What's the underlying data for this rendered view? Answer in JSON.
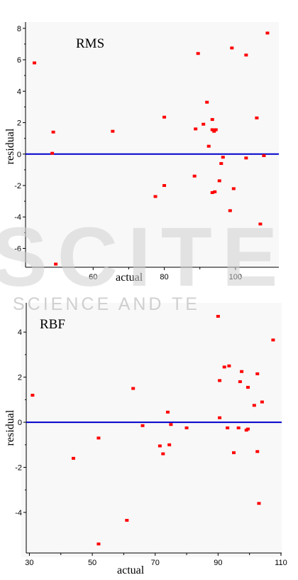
{
  "charts": [
    {
      "label": "RMS",
      "xlabel": "actual",
      "ylabel": "residual"
    },
    {
      "label": "RBF",
      "xlabel": "actual",
      "ylabel": "residual"
    }
  ],
  "watermark": {
    "big_text": "SCITE",
    "small_text": "SCIENCE AND TE"
  },
  "colors": {
    "point": "#ff0000",
    "zero_line": "#0000cc",
    "axis": "#000000",
    "watermark": "#c8c8c8"
  },
  "chart_data": [
    {
      "type": "scatter",
      "title": "RMS",
      "xlabel": "actual",
      "ylabel": "residual",
      "xlim": [
        41,
        112
      ],
      "ylim": [
        -7.2,
        8.4
      ],
      "xticks": [
        60,
        80,
        100
      ],
      "yticks": [
        -6,
        -4,
        -2,
        0,
        2,
        4,
        6,
        8
      ],
      "reference_line_y": 0,
      "grid": false,
      "points": [
        {
          "x": 43.5,
          "y": 5.8
        },
        {
          "x": 48.5,
          "y": 0.05
        },
        {
          "x": 48.8,
          "y": 1.4
        },
        {
          "x": 49.5,
          "y": -7.0
        },
        {
          "x": 65.5,
          "y": 1.45
        },
        {
          "x": 77.5,
          "y": -2.7
        },
        {
          "x": 80.0,
          "y": 2.35
        },
        {
          "x": 80.0,
          "y": -2.0
        },
        {
          "x": 88.5,
          "y": -1.4
        },
        {
          "x": 88.8,
          "y": 1.6
        },
        {
          "x": 89.5,
          "y": 6.4
        },
        {
          "x": 91.0,
          "y": 1.9
        },
        {
          "x": 92.0,
          "y": 3.3
        },
        {
          "x": 92.5,
          "y": 0.5
        },
        {
          "x": 93.5,
          "y": 2.2
        },
        {
          "x": 93.5,
          "y": 1.55
        },
        {
          "x": 93.5,
          "y": -2.45
        },
        {
          "x": 94.0,
          "y": 1.45
        },
        {
          "x": 94.2,
          "y": -2.4
        },
        {
          "x": 94.5,
          "y": 1.55
        },
        {
          "x": 95.5,
          "y": -1.7
        },
        {
          "x": 96.0,
          "y": -0.6
        },
        {
          "x": 96.5,
          "y": -0.2
        },
        {
          "x": 98.5,
          "y": -3.6
        },
        {
          "x": 99.0,
          "y": 6.75
        },
        {
          "x": 99.5,
          "y": -2.2
        },
        {
          "x": 103.0,
          "y": 6.3
        },
        {
          "x": 103.0,
          "y": -0.25
        },
        {
          "x": 106.0,
          "y": 2.3
        },
        {
          "x": 107.0,
          "y": -4.45
        },
        {
          "x": 108.0,
          "y": -0.1
        },
        {
          "x": 109.0,
          "y": 7.7
        }
      ]
    },
    {
      "type": "scatter",
      "title": "RBF",
      "xlabel": "actual",
      "ylabel": "residual",
      "xlim": [
        29,
        110
      ],
      "ylim": [
        -5.8,
        5.3
      ],
      "xticks": [
        30,
        50,
        70,
        90,
        110
      ],
      "yticks": [
        -4,
        -2,
        0,
        2,
        4
      ],
      "reference_line_y": 0,
      "grid": false,
      "points": [
        {
          "x": 31.0,
          "y": 1.2
        },
        {
          "x": 44.0,
          "y": -1.6
        },
        {
          "x": 52.0,
          "y": -0.7
        },
        {
          "x": 52.0,
          "y": -5.4
        },
        {
          "x": 61.0,
          "y": -4.35
        },
        {
          "x": 63.0,
          "y": 1.5
        },
        {
          "x": 66.0,
          "y": -0.15
        },
        {
          "x": 71.5,
          "y": -1.05
        },
        {
          "x": 72.5,
          "y": -1.4
        },
        {
          "x": 74.0,
          "y": 0.45
        },
        {
          "x": 74.5,
          "y": -1.0
        },
        {
          "x": 75.0,
          "y": -0.1
        },
        {
          "x": 80.0,
          "y": -0.25
        },
        {
          "x": 90.0,
          "y": 4.7
        },
        {
          "x": 90.5,
          "y": 0.2
        },
        {
          "x": 90.5,
          "y": 1.85
        },
        {
          "x": 92.0,
          "y": 2.45
        },
        {
          "x": 93.0,
          "y": -0.25
        },
        {
          "x": 93.5,
          "y": 2.5
        },
        {
          "x": 95.0,
          "y": -1.35
        },
        {
          "x": 96.5,
          "y": -0.25
        },
        {
          "x": 97.0,
          "y": 1.8
        },
        {
          "x": 97.5,
          "y": 2.25
        },
        {
          "x": 99.0,
          "y": -0.35
        },
        {
          "x": 99.5,
          "y": 1.55
        },
        {
          "x": 99.5,
          "y": -0.3
        },
        {
          "x": 101.5,
          "y": 0.75
        },
        {
          "x": 102.5,
          "y": 2.15
        },
        {
          "x": 102.5,
          "y": -1.3
        },
        {
          "x": 103.0,
          "y": -3.6
        },
        {
          "x": 104.0,
          "y": 0.9
        },
        {
          "x": 107.5,
          "y": 3.65
        }
      ]
    }
  ]
}
